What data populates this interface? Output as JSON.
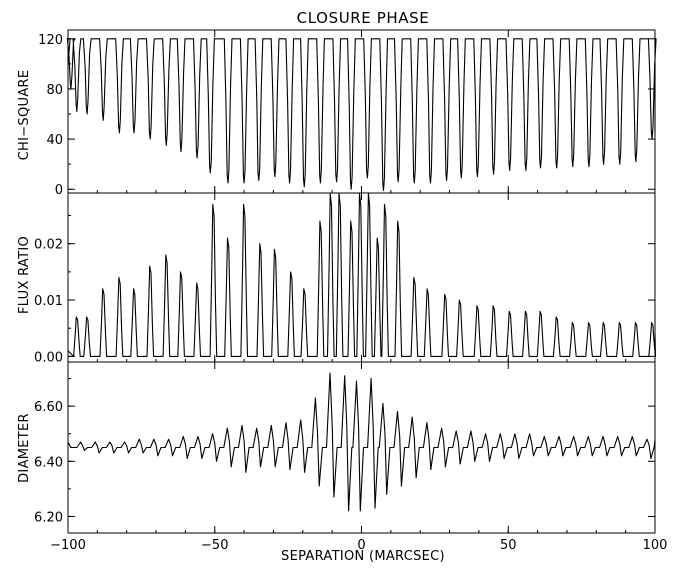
{
  "chart_data": {
    "type": "line",
    "title": "CLOSURE PHASE",
    "xlabel": "SEPARATION (MARCSEC)",
    "xlim": [
      -100,
      100
    ],
    "x_ticks": [
      -100,
      -50,
      0,
      50,
      100
    ],
    "x_tick_labels": [
      "−100",
      "−50",
      "0",
      "50",
      "100"
    ],
    "panels": [
      {
        "id": "chi-square",
        "ylabel": "CHI−SQUARE",
        "ylim": [
          -3,
          127
        ],
        "y_ticks": [
          0,
          40,
          80,
          120
        ],
        "y_tick_labels": [
          "0",
          "40",
          "80",
          "120"
        ],
        "plateau": 120,
        "dips": [
          [
            -99,
            80
          ],
          [
            -97,
            62
          ],
          [
            -93.5,
            60
          ],
          [
            -88,
            55
          ],
          [
            -82.5,
            45
          ],
          [
            -77.5,
            45
          ],
          [
            -72,
            40
          ],
          [
            -66.5,
            35
          ],
          [
            -61.5,
            30
          ],
          [
            -56,
            25
          ],
          [
            -51.5,
            13
          ],
          [
            -45.5,
            5
          ],
          [
            -40,
            5
          ],
          [
            -35,
            7
          ],
          [
            -29.5,
            10
          ],
          [
            -24.5,
            5
          ],
          [
            -19.5,
            2
          ],
          [
            -14,
            5
          ],
          [
            -8.5,
            6
          ],
          [
            -3.5,
            0
          ],
          [
            2,
            9
          ],
          [
            7.5,
            -1
          ],
          [
            12.5,
            6
          ],
          [
            18,
            5
          ],
          [
            23.5,
            5
          ],
          [
            29,
            7
          ],
          [
            34,
            9
          ],
          [
            39.5,
            10
          ],
          [
            45,
            12
          ],
          [
            50.5,
            15
          ],
          [
            56,
            15
          ],
          [
            61,
            17
          ],
          [
            66.5,
            17
          ],
          [
            72,
            18
          ],
          [
            77.5,
            18
          ],
          [
            82.5,
            20
          ],
          [
            88,
            20
          ],
          [
            93.5,
            22
          ],
          [
            99,
            40
          ]
        ]
      },
      {
        "id": "flux-ratio",
        "ylabel": "FLUX RATIO",
        "ylim": [
          -0.001,
          0.029
        ],
        "y_ticks": [
          0.0,
          0.01,
          0.02
        ],
        "y_tick_labels": [
          "0.00",
          "0.01",
          "0.02"
        ],
        "baseline": 0.0,
        "peaks": [
          [
            -97,
            0.007
          ],
          [
            -93.5,
            0.007
          ],
          [
            -88,
            0.012
          ],
          [
            -82.5,
            0.014
          ],
          [
            -77.5,
            0.012
          ],
          [
            -72,
            0.016
          ],
          [
            -66.5,
            0.018
          ],
          [
            -61.5,
            0.015
          ],
          [
            -56,
            0.013
          ],
          [
            -50.5,
            0.027
          ],
          [
            -45.5,
            0.021
          ],
          [
            -40,
            0.027
          ],
          [
            -34.5,
            0.02
          ],
          [
            -29.5,
            0.019
          ],
          [
            -24,
            0.015
          ],
          [
            -19.5,
            0.012
          ],
          [
            -14,
            0.024
          ],
          [
            -10.5,
            0.029
          ],
          [
            -7.5,
            0.029
          ],
          [
            -3.5,
            0.024
          ],
          [
            -0.5,
            0.029
          ],
          [
            2.5,
            0.029
          ],
          [
            5.5,
            0.021
          ],
          [
            8,
            0.027
          ],
          [
            12.5,
            0.024
          ],
          [
            18,
            0.014
          ],
          [
            22.5,
            0.012
          ],
          [
            28.5,
            0.011
          ],
          [
            33.5,
            0.01
          ],
          [
            39.5,
            0.009
          ],
          [
            45,
            0.009
          ],
          [
            50.5,
            0.008
          ],
          [
            56,
            0.008
          ],
          [
            61,
            0.008
          ],
          [
            66.5,
            0.007
          ],
          [
            72,
            0.006
          ],
          [
            77.5,
            0.006
          ],
          [
            82.5,
            0.006
          ],
          [
            88,
            0.006
          ],
          [
            93.5,
            0.006
          ],
          [
            99,
            0.006
          ]
        ]
      },
      {
        "id": "diameter",
        "ylabel": "DIAMETER",
        "ylim": [
          6.14,
          6.76
        ],
        "y_ticks": [
          6.2,
          6.4,
          6.6
        ],
        "y_tick_labels": [
          "6.20",
          "6.40",
          "6.60"
        ],
        "baseline": 6.45,
        "wiggles": [
          [
            -20,
            6.55,
            6.36
          ],
          [
            -15,
            6.63,
            6.31
          ],
          [
            -10,
            6.72,
            6.27
          ],
          [
            -5,
            6.71,
            6.22
          ],
          [
            -1,
            6.69,
            6.22
          ],
          [
            4,
            6.7,
            6.23
          ],
          [
            8,
            6.61,
            6.28
          ],
          [
            13,
            6.58,
            6.31
          ],
          [
            18,
            6.56,
            6.34
          ],
          [
            -25,
            6.54,
            6.37
          ],
          [
            -30,
            6.53,
            6.38
          ],
          [
            -35,
            6.52,
            6.38
          ],
          [
            -40,
            6.53,
            6.36
          ],
          [
            -45,
            6.52,
            6.38
          ],
          [
            -50,
            6.5,
            6.4
          ],
          [
            -55,
            6.49,
            6.41
          ],
          [
            -60,
            6.49,
            6.41
          ],
          [
            -65,
            6.48,
            6.42
          ],
          [
            -70,
            6.48,
            6.42
          ],
          [
            -75,
            6.48,
            6.43
          ],
          [
            -80,
            6.47,
            6.43
          ],
          [
            -85,
            6.47,
            6.43
          ],
          [
            -90,
            6.47,
            6.43
          ],
          [
            -95,
            6.47,
            6.44
          ],
          [
            23,
            6.54,
            6.37
          ],
          [
            28,
            6.52,
            6.38
          ],
          [
            33,
            6.51,
            6.39
          ],
          [
            38,
            6.51,
            6.4
          ],
          [
            43,
            6.5,
            6.4
          ],
          [
            48,
            6.5,
            6.41
          ],
          [
            53,
            6.5,
            6.41
          ],
          [
            58,
            6.5,
            6.42
          ],
          [
            63,
            6.49,
            6.42
          ],
          [
            68,
            6.49,
            6.42
          ],
          [
            73,
            6.49,
            6.42
          ],
          [
            78,
            6.49,
            6.42
          ],
          [
            83,
            6.49,
            6.42
          ],
          [
            88,
            6.49,
            6.42
          ],
          [
            93,
            6.49,
            6.42
          ],
          [
            98,
            6.48,
            6.41
          ]
        ]
      }
    ]
  }
}
